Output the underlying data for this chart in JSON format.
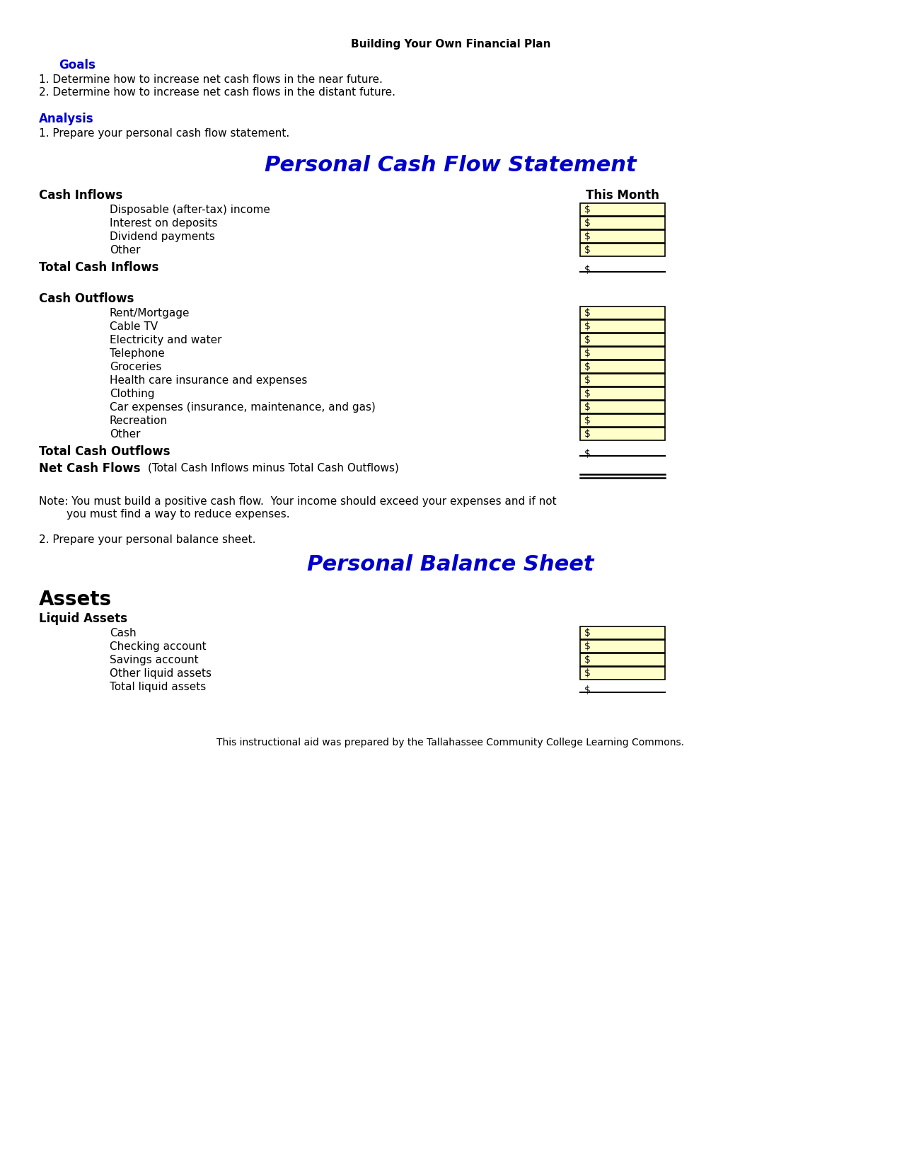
{
  "page_title": "Building Your Own Financial Plan",
  "goals_header": "Goals",
  "goals": [
    "1. Determine how to increase net cash flows in the near future.",
    "2. Determine how to increase net cash flows in the distant future."
  ],
  "analysis_header": "Analysis",
  "analysis": [
    "1. Prepare your personal cash flow statement."
  ],
  "cash_flow_title": "Personal Cash Flow Statement",
  "cash_inflows_header": "Cash Inflows",
  "this_month_label": "This Month",
  "cash_inflow_items": [
    "Disposable (after-tax) income",
    "Interest on deposits",
    "Dividend payments",
    "Other"
  ],
  "total_cash_inflows": "Total Cash Inflows",
  "cash_outflows_header": "Cash Outflows",
  "cash_outflow_items": [
    "Rent/Mortgage",
    "Cable TV",
    "Electricity and water",
    "Telephone",
    "Groceries",
    "Health care insurance and expenses",
    "Clothing",
    "Car expenses (insurance, maintenance, and gas)",
    "Recreation",
    "Other"
  ],
  "total_cash_outflows": "Total Cash Outflows",
  "net_cash_flows_label": "Net Cash Flows",
  "net_cash_flows_desc": "        (Total Cash Inflows minus Total Cash Outflows)",
  "note_line1": "Note: You must build a positive cash flow.  Your income should exceed your expenses and if not",
  "note_line2": "        you must find a way to reduce expenses.",
  "analysis2": "2. Prepare your personal balance sheet.",
  "balance_sheet_title": "Personal Balance Sheet",
  "assets_header": "Assets",
  "liquid_assets_header": "Liquid Assets",
  "liquid_asset_items": [
    "Cash",
    "Checking account",
    "Savings account",
    "Other liquid assets",
    "Total liquid assets"
  ],
  "footer": "This instructional aid was prepared by the Tallahassee Community College Learning Commons.",
  "bg_color": "#ffffff",
  "blue_color": "#0000CC",
  "black_color": "#000000",
  "yellow_box_color": "#FFFFCC",
  "box_border_color": "#000000"
}
